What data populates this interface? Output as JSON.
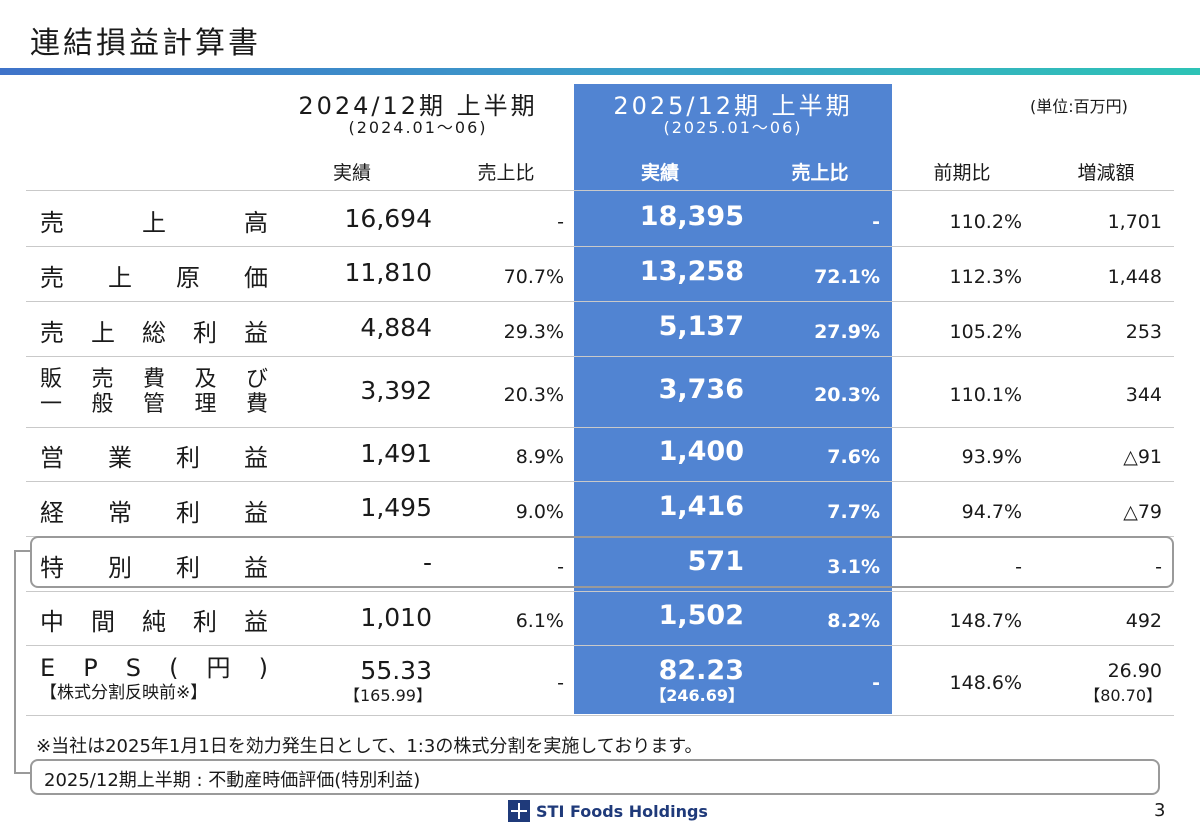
{
  "title": "連結損益計算書",
  "unit": "(単位:百万円)",
  "prev_header": {
    "period": "2024/12期 上半期",
    "range": "(2024.01～06)"
  },
  "curr_header": {
    "period": "2025/12期 上半期",
    "range": "(2025.01～06)"
  },
  "subheaders": {
    "prev_actual": "実績",
    "prev_ratio": "売上比",
    "curr_actual": "実績",
    "curr_ratio": "売上比",
    "yoy": "前期比",
    "diff": "増減額"
  },
  "rows": [
    {
      "label": [
        "売",
        "上",
        "高"
      ],
      "prev": "16,694",
      "prev_ratio": "-",
      "curr": "18,395",
      "curr_ratio": "-",
      "yoy": "110.2%",
      "diff": "1,701"
    },
    {
      "label": [
        "売",
        "上",
        "原",
        "価"
      ],
      "prev": "11,810",
      "prev_ratio": "70.7%",
      "curr": "13,258",
      "curr_ratio": "72.1%",
      "yoy": "112.3%",
      "diff": "1,448"
    },
    {
      "label": [
        "売",
        "上",
        "総",
        "利",
        "益"
      ],
      "prev": "4,884",
      "prev_ratio": "29.3%",
      "curr": "5,137",
      "curr_ratio": "27.9%",
      "yoy": "105.2%",
      "diff": "253"
    },
    {
      "label_line1": [
        "販",
        "売",
        "費",
        "及",
        "び"
      ],
      "label_line2": [
        "一",
        "般",
        "管",
        "理",
        "費"
      ],
      "prev": "3,392",
      "prev_ratio": "20.3%",
      "curr": "3,736",
      "curr_ratio": "20.3%",
      "yoy": "110.1%",
      "diff": "344"
    },
    {
      "label": [
        "営",
        "業",
        "利",
        "益"
      ],
      "prev": "1,491",
      "prev_ratio": "8.9%",
      "curr": "1,400",
      "curr_ratio": "7.6%",
      "yoy": "93.9%",
      "diff": "△91"
    },
    {
      "label": [
        "経",
        "常",
        "利",
        "益"
      ],
      "prev": "1,495",
      "prev_ratio": "9.0%",
      "curr": "1,416",
      "curr_ratio": "7.7%",
      "yoy": "94.7%",
      "diff": "△79"
    },
    {
      "label": [
        "特",
        "別",
        "利",
        "益"
      ],
      "prev": "-",
      "prev_ratio": "-",
      "curr": "571",
      "curr_ratio": "3.1%",
      "yoy": "-",
      "diff": "-"
    },
    {
      "label": [
        "中",
        "間",
        "純",
        "利",
        "益"
      ],
      "prev": "1,010",
      "prev_ratio": "6.1%",
      "curr": "1,502",
      "curr_ratio": "8.2%",
      "yoy": "148.7%",
      "diff": "492"
    },
    {
      "label_line1": [
        "E",
        "P",
        "S",
        "(",
        "円",
        ")"
      ],
      "label_sub": "【株式分割反映前※】",
      "prev": "55.33",
      "prev_sub": "【165.99】",
      "prev_ratio": "-",
      "curr": "82.23",
      "curr_sub": "【246.69】",
      "curr_ratio": "-",
      "yoy": "148.6%",
      "diff": "26.90",
      "diff_sub": "【80.70】"
    }
  ],
  "note": "※当社は2025年1月1日を効力発生日として、1:3の株式分割を実施しております。",
  "callout": "2025/12期上半期 : 不動産時価評価(特別利益)",
  "footer": {
    "company": "STI Foods Holdings",
    "page": "3"
  },
  "colors": {
    "highlight": "#5184d2",
    "rule_start": "#3f73c9",
    "rule_end": "#2ec3b6"
  }
}
